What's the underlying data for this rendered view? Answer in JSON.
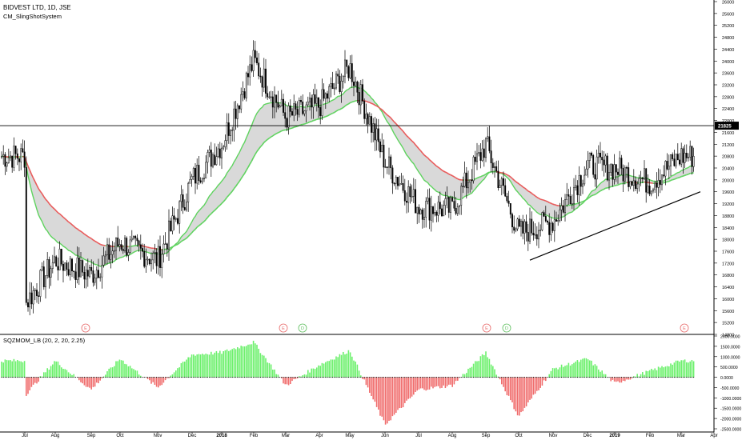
{
  "header": {
    "symbol_line": "BIDVEST LTD, 1D, JSE",
    "indicator_top": "CM_SlingShotSystem",
    "indicator_bottom": "SQZMOM_LB (20, 2, 20, 2.25)"
  },
  "price_label": "21825",
  "colors": {
    "candle": "#000000",
    "ema_fast": "#5fd35f",
    "ema_slow_up": "#5fd35f",
    "ema_slow_down": "#e85a5a",
    "cloud": "#d9d9d9",
    "mom_pos": "#6cf06c",
    "mom_neg": "#f06c6c",
    "mom_zero": "#000000",
    "event_e": "#e86a6a",
    "event_d": "#5fbf5f",
    "hline": "#000000",
    "trend": "#000000"
  },
  "x_axis": {
    "labels": [
      "Jul",
      "Aug",
      "Sep",
      "Oct",
      "Nov",
      "Dec",
      "2018",
      "Feb",
      "Mar",
      "Apr",
      "May",
      "Jun",
      "Jul",
      "Aug",
      "Sep",
      "Oct",
      "Nov",
      "Dec",
      "2019",
      "Feb",
      "Mar",
      "Apr"
    ]
  },
  "chart_data": [
    {
      "type": "candlestick",
      "title": "BIDVEST LTD, 1D, JSE",
      "ylim": [
        14800,
        26000
      ],
      "y_ticks": [
        14800,
        15200,
        15600,
        16000,
        16400,
        16800,
        17200,
        17600,
        18000,
        18400,
        18800,
        19200,
        19600,
        20000,
        20400,
        20800,
        21200,
        21600,
        22000,
        22400,
        22800,
        23200,
        23600,
        24000,
        24400,
        24800,
        25200,
        25600,
        26000
      ],
      "x_labels": [
        "Jul",
        "Aug",
        "Sep",
        "Oct",
        "Nov",
        "Dec",
        "2018",
        "Feb",
        "Mar",
        "Apr",
        "May",
        "Jun",
        "Jul",
        "Aug",
        "Sep",
        "Oct",
        "Nov",
        "Dec",
        "2019",
        "Feb",
        "Mar",
        "Apr"
      ],
      "horizontal_line": 21825,
      "close_path": [
        [
          "Jul",
          15800
        ],
        [
          "Aug",
          17300
        ],
        [
          "Sep",
          16800
        ],
        [
          "Oct",
          17900
        ],
        [
          "Nov",
          17300
        ],
        [
          "Dec",
          20000
        ],
        [
          "2018",
          21200
        ],
        [
          "Feb",
          24000
        ],
        [
          "Mar",
          22100
        ],
        [
          "Apr",
          22500
        ],
        [
          "May",
          23800
        ],
        [
          "Jun",
          20600
        ],
        [
          "Jul",
          19100
        ],
        [
          "Aug",
          19000
        ],
        [
          "Sep",
          21200
        ],
        [
          "Oct",
          18200
        ],
        [
          "Nov",
          18600
        ],
        [
          "Dec",
          20500
        ],
        [
          "2019",
          20400
        ],
        [
          "Feb",
          19900
        ],
        [
          "Mar",
          20800
        ]
      ],
      "events": [
        {
          "label": "E",
          "x": "Sep"
        },
        {
          "label": "E",
          "x": "Mar"
        },
        {
          "label": "D",
          "x": "Mar"
        },
        {
          "label": "E",
          "x": "Sep"
        },
        {
          "label": "D",
          "x": "Oct"
        },
        {
          "label": "E",
          "x": "Mar"
        }
      ],
      "trendline": {
        "from": [
          "Oct",
          17300
        ],
        "to": [
          "Mar",
          19600
        ]
      }
    },
    {
      "type": "bar",
      "title": "SQZMOM_LB (20, 2, 20, 2.25)",
      "ylim": [
        -2500,
        2000
      ],
      "y_ticks": [
        "2000.0000",
        "1500.0000",
        "1000.0000",
        "500.0000",
        "0.0000",
        "-500.0000",
        "-1000.0000",
        "-1500.0000",
        "-2000.0000",
        "-2500.0000"
      ],
      "momentum_path": [
        [
          "Jul",
          -900
        ],
        [
          "Aug",
          800
        ],
        [
          "Sep",
          -600
        ],
        [
          "Oct",
          900
        ],
        [
          "Nov",
          -500
        ],
        [
          "Dec",
          1100
        ],
        [
          "2018",
          1200
        ],
        [
          "Feb",
          1700
        ],
        [
          "Mar",
          -400
        ],
        [
          "Apr",
          600
        ],
        [
          "May",
          1300
        ],
        [
          "Jun",
          -2300
        ],
        [
          "Jul",
          -600
        ],
        [
          "Aug",
          -400
        ],
        [
          "Sep",
          1200
        ],
        [
          "Oct",
          -1900
        ],
        [
          "Nov",
          400
        ],
        [
          "Dec",
          900
        ],
        [
          "2019",
          -300
        ],
        [
          "Feb",
          300
        ],
        [
          "Mar",
          800
        ]
      ]
    }
  ]
}
